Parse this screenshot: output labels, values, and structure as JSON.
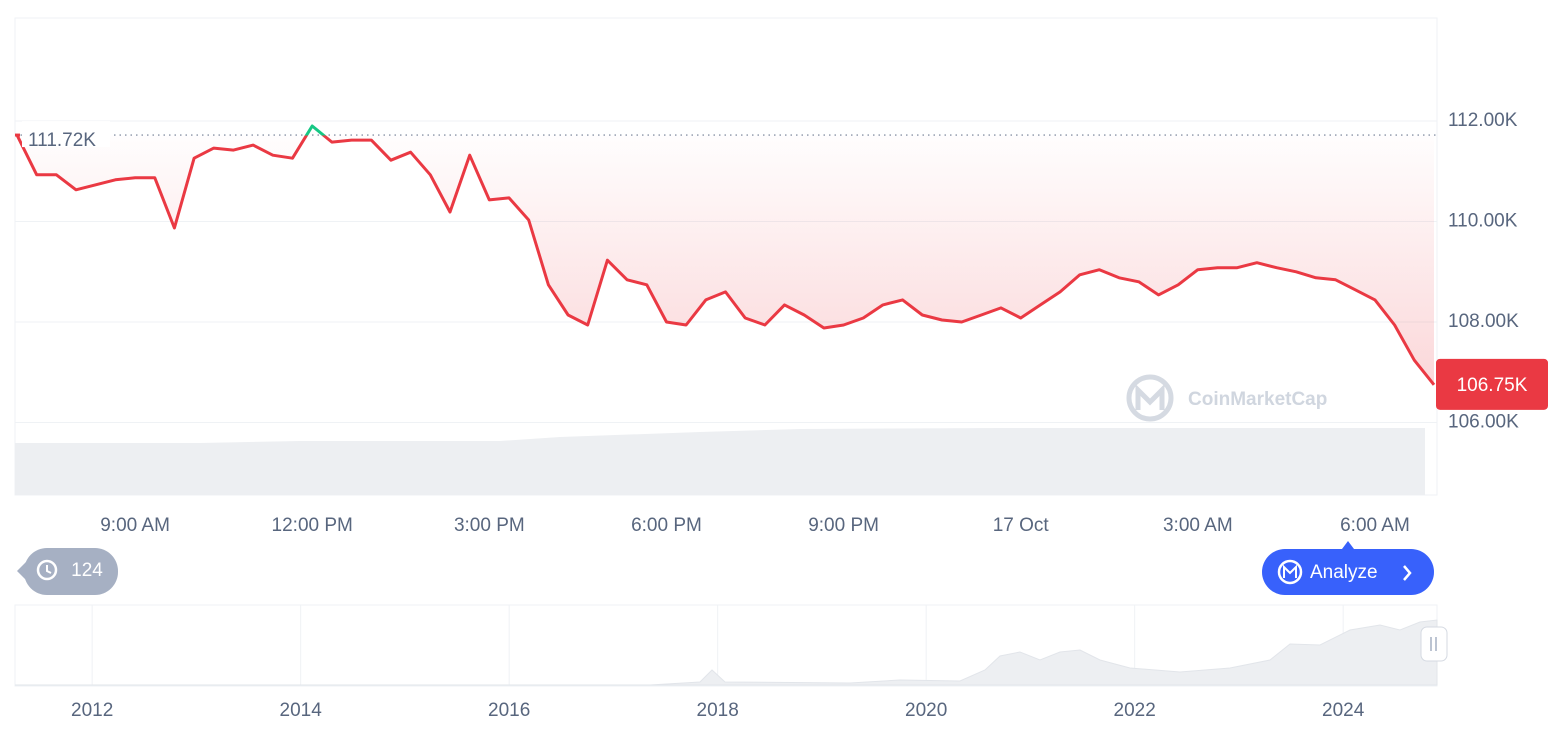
{
  "chart_data": {
    "type": "line",
    "color": "#ea3943",
    "up_color": "#16c784",
    "categories": [
      null,
      null,
      null,
      null,
      null,
      null,
      "9:00 AM",
      null,
      null,
      null,
      null,
      null,
      null,
      null,
      null,
      "12:00 PM",
      null,
      null,
      null,
      null,
      null,
      null,
      null,
      null,
      "3:00 PM",
      null,
      null,
      null,
      null,
      null,
      null,
      null,
      null,
      "6:00 PM",
      null,
      null,
      null,
      null,
      null,
      null,
      null,
      null,
      "9:00 PM",
      null,
      null,
      null,
      null,
      null,
      null,
      null,
      null,
      "17 Oct",
      null,
      null,
      null,
      null,
      null,
      null,
      null,
      null,
      "3:00 AM",
      null,
      null,
      null,
      null,
      null,
      null,
      null,
      null,
      "6:00 AM",
      null,
      null,
      null
    ],
    "values": [
      111720,
      110930,
      110930,
      110630,
      110730,
      110830,
      110870,
      110870,
      109870,
      111260,
      111460,
      111420,
      111520,
      111320,
      111260,
      111900,
      111580,
      111620,
      111620,
      111220,
      111380,
      110930,
      110190,
      111320,
      110430,
      110470,
      110030,
      108740,
      108140,
      107940,
      109230,
      108840,
      108740,
      108000,
      107940,
      108440,
      108600,
      108080,
      107940,
      108340,
      108140,
      107880,
      107940,
      108080,
      108340,
      108440,
      108140,
      108040,
      108000,
      108140,
      108280,
      108080,
      108340,
      108600,
      108940,
      109040,
      108880,
      108800,
      108540,
      108740,
      109040,
      109080,
      109080,
      109180,
      109080,
      109000,
      108880,
      108840,
      108640,
      108440,
      107940,
      107240,
      106750
    ],
    "ylim": [
      106000,
      114000
    ],
    "yticks": [
      {
        "value": 106000,
        "label": "106.00K"
      },
      {
        "value": 108000,
        "label": "108.00K"
      },
      {
        "value": 110000,
        "label": "110.00K"
      },
      {
        "value": 112000,
        "label": "112.00K"
      }
    ],
    "grid": true,
    "reference": {
      "value": 111720,
      "label": "111.72K"
    },
    "current_price": {
      "value": 106750,
      "label": "106.75K"
    },
    "navigator": {
      "xlim": [
        2011.26,
        2024.9
      ],
      "xticks": [
        2012,
        2014,
        2016,
        2018,
        2020,
        2022,
        2024
      ]
    }
  },
  "ui": {
    "history_count": 124,
    "analyze": "Analyze",
    "watermark": "CoinMarketCap"
  }
}
